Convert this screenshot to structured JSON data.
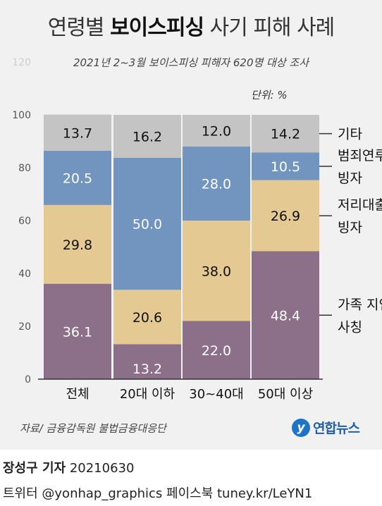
{
  "title_light_prefix": "연령별 ",
  "title_bold": "보이스피싱",
  "title_light_suffix": " 사기 피해 사례",
  "subtitle": "2021년 2~3월 보이스피싱 피해자 620명 대상 조사",
  "unit": "단위: %",
  "source": "자료/ 금융감독원 불법금융대응단",
  "logo": {
    "icon_text": "y",
    "text": "연합뉴스",
    "color": "#1f74c8"
  },
  "byline": {
    "author": "장성구 기자",
    "date": "20210630"
  },
  "social": "트위터 @yonhap_graphics  페이스북 tuney.kr/LeYN1",
  "chart_data": {
    "type": "bar",
    "stacked": true,
    "categories": [
      "전체",
      "20대 이하",
      "30~40대",
      "50대 이상"
    ],
    "series": [
      {
        "name": "가족 지인 사칭",
        "values": [
          36.1,
          13.2,
          22.0,
          48.4
        ],
        "color": "#8c6f88",
        "label_color": "#ffffff"
      },
      {
        "name": "저리대출 빙자",
        "values": [
          29.8,
          20.6,
          38.0,
          26.9
        ],
        "color": "#e5c992",
        "label_color": "#111111"
      },
      {
        "name": "범죄연루 빙자",
        "values": [
          20.5,
          50.0,
          28.0,
          10.5
        ],
        "color": "#7195bf",
        "label_color": "#ffffff"
      },
      {
        "name": "기타",
        "values": [
          13.7,
          16.2,
          12.0,
          14.2
        ],
        "color": "#c4c4c4",
        "label_color": "#111111"
      }
    ],
    "legend_entries": [
      {
        "lines": [
          "가족 지인",
          "사칭"
        ]
      },
      {
        "lines": [
          "저리대출",
          "빙자"
        ]
      },
      {
        "lines": [
          "범죄연루",
          "빙자"
        ]
      },
      {
        "lines": [
          "기타"
        ]
      }
    ],
    "yticks": [
      "0",
      "20",
      "40",
      "60",
      "80",
      "100",
      "120"
    ],
    "ylim": [
      0,
      120
    ],
    "grid": false,
    "legend_position": "right"
  }
}
